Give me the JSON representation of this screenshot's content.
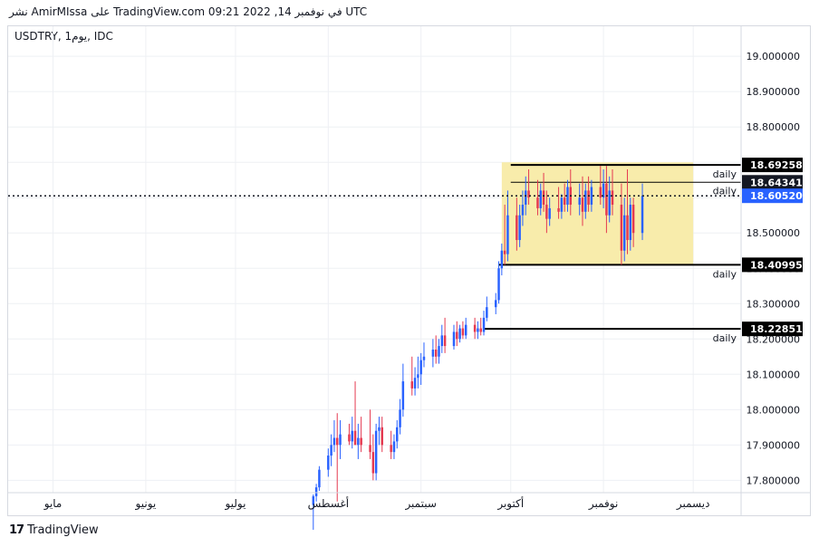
{
  "header": {
    "text": "نشر AmirMIssa على TradingView.com في نوفمبر 14, 2022 09:21 UTC"
  },
  "symbol": {
    "text": "USDTRY, 1يوم, IDC"
  },
  "footer": {
    "logo_mark": "17",
    "logo_text": "TradingView"
  },
  "colors": {
    "up": "#2962ff",
    "down": "#e53950",
    "zone_fill": "#f8ecab",
    "level_line": "#000000"
  },
  "chart_data": {
    "type": "candlestick",
    "y_ticks": [
      "19.000000",
      "18.900000",
      "18.800000",
      "18.700000",
      "18.600000",
      "18.500000",
      "18.400000",
      "18.300000",
      "18.200000",
      "18.100000",
      "18.000000",
      "17.900000",
      "17.800000"
    ],
    "y_tick_values": [
      19.0,
      18.9,
      18.8,
      18.7,
      18.6,
      18.5,
      18.4,
      18.3,
      18.2,
      18.1,
      18.0,
      17.9,
      17.8
    ],
    "ylim": [
      17.765,
      19.085
    ],
    "x_ticks": [
      "مايو",
      "يونيو",
      "يوليو",
      "أغسطس",
      "سبتمبر",
      "أكتوبر",
      "نوفمبر",
      "ديسمبر"
    ],
    "x_tick_dates": [
      "2022-05-01",
      "2022-06-01",
      "2022-07-01",
      "2022-08-01",
      "2022-09-01",
      "2022-10-01",
      "2022-11-01",
      "2022-12-01"
    ],
    "current_price": {
      "value": 18.6052,
      "label": "18.605200"
    },
    "hidden_level_label": "18.643414",
    "levels": [
      {
        "value": 18.692589,
        "label": "18.692589",
        "tag": "daily",
        "start": "2022-10-01"
      },
      {
        "value": 18.643414,
        "label": "",
        "tag": "daily",
        "start": "2022-10-01"
      },
      {
        "value": 18.409954,
        "label": "18.409954",
        "tag": "daily",
        "start": "2022-09-27"
      },
      {
        "value": 18.228516,
        "label": "18.228516",
        "tag": "daily",
        "start": "2022-09-22"
      }
    ],
    "zone": {
      "top": 18.7,
      "bottom": 18.41,
      "start": "2022-09-28",
      "end": "2022-12-01"
    },
    "candles": [
      {
        "d": "2022-07-27",
        "o": 17.73,
        "h": 17.76,
        "l": 17.66,
        "c": 17.755
      },
      {
        "d": "2022-07-28",
        "o": 17.755,
        "h": 17.79,
        "l": 17.74,
        "c": 17.78
      },
      {
        "d": "2022-07-29",
        "o": 17.78,
        "h": 17.84,
        "l": 17.77,
        "c": 17.83
      },
      {
        "d": "2022-08-01",
        "o": 17.83,
        "h": 17.89,
        "l": 17.81,
        "c": 17.87
      },
      {
        "d": "2022-08-02",
        "o": 17.87,
        "h": 17.93,
        "l": 17.84,
        "c": 17.9
      },
      {
        "d": "2022-08-03",
        "o": 17.9,
        "h": 17.97,
        "l": 17.88,
        "c": 17.92
      },
      {
        "d": "2022-08-04",
        "o": 17.92,
        "h": 17.99,
        "l": 17.74,
        "c": 17.9
      },
      {
        "d": "2022-08-05",
        "o": 17.9,
        "h": 17.97,
        "l": 17.86,
        "c": 17.93
      },
      {
        "d": "2022-08-08",
        "o": 17.93,
        "h": 17.96,
        "l": 17.9,
        "c": 17.91
      },
      {
        "d": "2022-08-09",
        "o": 17.91,
        "h": 17.98,
        "l": 17.89,
        "c": 17.94
      },
      {
        "d": "2022-08-10",
        "o": 17.94,
        "h": 18.08,
        "l": 17.9,
        "c": 17.9
      },
      {
        "d": "2022-08-11",
        "o": 17.9,
        "h": 17.96,
        "l": 17.86,
        "c": 17.92
      },
      {
        "d": "2022-08-12",
        "o": 17.92,
        "h": 17.98,
        "l": 17.88,
        "c": 17.9
      },
      {
        "d": "2022-08-15",
        "o": 17.9,
        "h": 18.0,
        "l": 17.86,
        "c": 17.88
      },
      {
        "d": "2022-08-16",
        "o": 17.88,
        "h": 17.93,
        "l": 17.8,
        "c": 17.82
      },
      {
        "d": "2022-08-17",
        "o": 17.82,
        "h": 17.96,
        "l": 17.8,
        "c": 17.94
      },
      {
        "d": "2022-08-18",
        "o": 17.94,
        "h": 17.98,
        "l": 17.9,
        "c": 17.95
      },
      {
        "d": "2022-08-19",
        "o": 17.95,
        "h": 17.98,
        "l": 17.88,
        "c": 17.9
      },
      {
        "d": "2022-08-22",
        "o": 17.9,
        "h": 17.94,
        "l": 17.86,
        "c": 17.88
      },
      {
        "d": "2022-08-23",
        "o": 17.88,
        "h": 17.93,
        "l": 17.86,
        "c": 17.91
      },
      {
        "d": "2022-08-24",
        "o": 17.91,
        "h": 17.97,
        "l": 17.89,
        "c": 17.95
      },
      {
        "d": "2022-08-25",
        "o": 17.95,
        "h": 18.03,
        "l": 17.93,
        "c": 18.0
      },
      {
        "d": "2022-08-26",
        "o": 18.0,
        "h": 18.13,
        "l": 17.98,
        "c": 18.08
      },
      {
        "d": "2022-08-29",
        "o": 18.08,
        "h": 18.15,
        "l": 18.04,
        "c": 18.06
      },
      {
        "d": "2022-08-30",
        "o": 18.06,
        "h": 18.12,
        "l": 18.04,
        "c": 18.09
      },
      {
        "d": "2022-08-31",
        "o": 18.09,
        "h": 18.15,
        "l": 18.06,
        "c": 18.1
      },
      {
        "d": "2022-09-01",
        "o": 18.1,
        "h": 18.16,
        "l": 18.07,
        "c": 18.14
      },
      {
        "d": "2022-09-02",
        "o": 18.14,
        "h": 18.19,
        "l": 18.12,
        "c": 18.15
      },
      {
        "d": "2022-09-05",
        "o": 18.15,
        "h": 18.2,
        "l": 18.12,
        "c": 18.17
      },
      {
        "d": "2022-09-06",
        "o": 18.17,
        "h": 18.21,
        "l": 18.13,
        "c": 18.15
      },
      {
        "d": "2022-09-07",
        "o": 18.15,
        "h": 18.2,
        "l": 18.13,
        "c": 18.18
      },
      {
        "d": "2022-09-08",
        "o": 18.18,
        "h": 18.24,
        "l": 18.16,
        "c": 18.21
      },
      {
        "d": "2022-09-09",
        "o": 18.21,
        "h": 18.26,
        "l": 18.16,
        "c": 18.18
      },
      {
        "d": "2022-09-12",
        "o": 18.18,
        "h": 18.24,
        "l": 18.17,
        "c": 18.22
      },
      {
        "d": "2022-09-13",
        "o": 18.22,
        "h": 18.25,
        "l": 18.18,
        "c": 18.2
      },
      {
        "d": "2022-09-14",
        "o": 18.2,
        "h": 18.24,
        "l": 18.19,
        "c": 18.23
      },
      {
        "d": "2022-09-15",
        "o": 18.23,
        "h": 18.25,
        "l": 18.2,
        "c": 18.21
      },
      {
        "d": "2022-09-16",
        "o": 18.21,
        "h": 18.26,
        "l": 18.2,
        "c": 18.24
      },
      {
        "d": "2022-09-19",
        "o": 18.24,
        "h": 18.26,
        "l": 18.2,
        "c": 18.22
      },
      {
        "d": "2022-09-20",
        "o": 18.22,
        "h": 18.25,
        "l": 18.2,
        "c": 18.23
      },
      {
        "d": "2022-09-21",
        "o": 18.23,
        "h": 18.26,
        "l": 18.21,
        "c": 18.22
      },
      {
        "d": "2022-09-22",
        "o": 18.22,
        "h": 18.28,
        "l": 18.21,
        "c": 18.26
      },
      {
        "d": "2022-09-23",
        "o": 18.26,
        "h": 18.32,
        "l": 18.25,
        "c": 18.29
      },
      {
        "d": "2022-09-26",
        "o": 18.29,
        "h": 18.33,
        "l": 18.27,
        "c": 18.31
      },
      {
        "d": "2022-09-27",
        "o": 18.31,
        "h": 18.42,
        "l": 18.3,
        "c": 18.4
      },
      {
        "d": "2022-09-28",
        "o": 18.4,
        "h": 18.47,
        "l": 18.38,
        "c": 18.45
      },
      {
        "d": "2022-09-29",
        "o": 18.45,
        "h": 18.58,
        "l": 18.41,
        "c": 18.44
      },
      {
        "d": "2022-09-30",
        "o": 18.44,
        "h": 18.62,
        "l": 18.42,
        "c": 18.55
      },
      {
        "d": "2022-10-03",
        "o": 18.55,
        "h": 18.6,
        "l": 18.45,
        "c": 18.48
      },
      {
        "d": "2022-10-04",
        "o": 18.48,
        "h": 18.58,
        "l": 18.46,
        "c": 18.55
      },
      {
        "d": "2022-10-05",
        "o": 18.55,
        "h": 18.62,
        "l": 18.52,
        "c": 18.58
      },
      {
        "d": "2022-10-06",
        "o": 18.58,
        "h": 18.66,
        "l": 18.55,
        "c": 18.62
      },
      {
        "d": "2022-10-07",
        "o": 18.62,
        "h": 18.68,
        "l": 18.58,
        "c": 18.6
      },
      {
        "d": "2022-10-10",
        "o": 18.6,
        "h": 18.65,
        "l": 18.55,
        "c": 18.57
      },
      {
        "d": "2022-10-11",
        "o": 18.57,
        "h": 18.64,
        "l": 18.55,
        "c": 18.62
      },
      {
        "d": "2022-10-12",
        "o": 18.62,
        "h": 18.67,
        "l": 18.56,
        "c": 18.58
      },
      {
        "d": "2022-10-13",
        "o": 18.58,
        "h": 18.62,
        "l": 18.5,
        "c": 18.54
      },
      {
        "d": "2022-10-14",
        "o": 18.54,
        "h": 18.6,
        "l": 18.52,
        "c": 18.57
      },
      {
        "d": "2022-10-17",
        "o": 18.57,
        "h": 18.63,
        "l": 18.54,
        "c": 18.56
      },
      {
        "d": "2022-10-18",
        "o": 18.56,
        "h": 18.61,
        "l": 18.54,
        "c": 18.6
      },
      {
        "d": "2022-10-19",
        "o": 18.6,
        "h": 18.64,
        "l": 18.56,
        "c": 18.58
      },
      {
        "d": "2022-10-20",
        "o": 18.58,
        "h": 18.65,
        "l": 18.56,
        "c": 18.63
      },
      {
        "d": "2022-10-21",
        "o": 18.63,
        "h": 18.68,
        "l": 18.55,
        "c": 18.58
      },
      {
        "d": "2022-10-24",
        "o": 18.58,
        "h": 18.64,
        "l": 18.55,
        "c": 18.6
      },
      {
        "d": "2022-10-25",
        "o": 18.6,
        "h": 18.66,
        "l": 18.52,
        "c": 18.56
      },
      {
        "d": "2022-10-26",
        "o": 18.56,
        "h": 18.64,
        "l": 18.54,
        "c": 18.62
      },
      {
        "d": "2022-10-27",
        "o": 18.62,
        "h": 18.66,
        "l": 18.56,
        "c": 18.58
      },
      {
        "d": "2022-10-28",
        "o": 18.58,
        "h": 18.65,
        "l": 18.56,
        "c": 18.63
      },
      {
        "d": "2022-10-31",
        "o": 18.63,
        "h": 18.69,
        "l": 18.58,
        "c": 18.6
      },
      {
        "d": "2022-11-01",
        "o": 18.6,
        "h": 18.68,
        "l": 18.57,
        "c": 18.64
      },
      {
        "d": "2022-11-02",
        "o": 18.64,
        "h": 18.69,
        "l": 18.5,
        "c": 18.55
      },
      {
        "d": "2022-11-03",
        "o": 18.55,
        "h": 18.66,
        "l": 18.53,
        "c": 18.62
      },
      {
        "d": "2022-11-04",
        "o": 18.62,
        "h": 18.68,
        "l": 18.55,
        "c": 18.58
      },
      {
        "d": "2022-11-07",
        "o": 18.58,
        "h": 18.64,
        "l": 18.41,
        "c": 18.45
      },
      {
        "d": "2022-11-08",
        "o": 18.45,
        "h": 18.6,
        "l": 18.42,
        "c": 18.55
      },
      {
        "d": "2022-11-09",
        "o": 18.55,
        "h": 18.68,
        "l": 18.44,
        "c": 18.48
      },
      {
        "d": "2022-11-10",
        "o": 18.48,
        "h": 18.6,
        "l": 18.45,
        "c": 18.58
      },
      {
        "d": "2022-11-11",
        "o": 18.58,
        "h": 18.6,
        "l": 18.46,
        "c": 18.5
      },
      {
        "d": "2022-11-14",
        "o": 18.5,
        "h": 18.64,
        "l": 18.48,
        "c": 18.605
      }
    ]
  }
}
